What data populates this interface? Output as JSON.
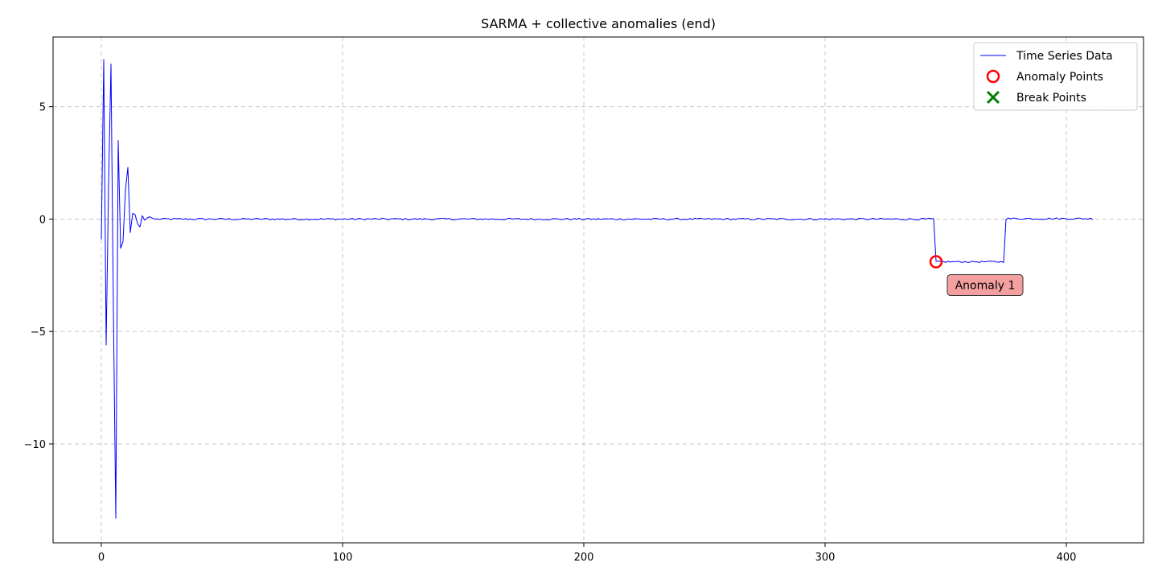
{
  "chart_data": {
    "type": "line",
    "title": "SARMA + collective anomalies (end)",
    "xlabel": "",
    "ylabel": "",
    "xlim": [
      -20,
      432
    ],
    "ylim": [
      -14.4,
      8.1
    ],
    "x_ticks": [
      0,
      100,
      200,
      300,
      400
    ],
    "y_ticks": [
      5,
      0,
      -5,
      -10
    ],
    "x_tick_labels": [
      "0",
      "100",
      "200",
      "300",
      "400"
    ],
    "y_tick_labels": [
      "5",
      "0",
      "−5",
      "−10"
    ],
    "grid": true,
    "legend_position": "top-right",
    "series": [
      {
        "name": "Time Series Data",
        "color": "#0000ff",
        "head": [
          [
            0,
            -0.9
          ],
          [
            1,
            7.1
          ],
          [
            2,
            -5.6
          ],
          [
            3,
            1.5
          ],
          [
            4,
            6.9
          ],
          [
            5,
            -4.0
          ],
          [
            6,
            -13.3
          ],
          [
            7,
            3.5
          ],
          [
            8,
            -1.3
          ],
          [
            9,
            -1.0
          ],
          [
            10,
            1.3
          ],
          [
            11,
            2.3
          ],
          [
            12,
            -0.6
          ],
          [
            13,
            0.25
          ],
          [
            14,
            0.2
          ],
          [
            15,
            -0.2
          ],
          [
            16,
            -0.35
          ],
          [
            17,
            0.15
          ],
          [
            18,
            -0.05
          ],
          [
            19,
            0.05
          ],
          [
            20,
            0.1
          ],
          [
            21,
            0.05
          ],
          [
            22,
            0.0
          ]
        ],
        "segments": [
          {
            "x_start": 23,
            "x_end": 345,
            "level": 0.0,
            "noise": 0.04
          },
          {
            "x_start": 346,
            "x_end": 374,
            "level": -1.9,
            "noise": 0.035
          },
          {
            "x_start": 375,
            "x_end": 411,
            "level": 0.02,
            "noise": 0.04
          }
        ]
      }
    ],
    "anomaly_points": [
      {
        "x": 346,
        "y": -1.9,
        "label": "Anomaly 1",
        "color": "#ff0000"
      }
    ],
    "break_points": [],
    "annotation_box_color": "#f4a0a0",
    "legend": [
      {
        "label": "Time Series Data",
        "marker": "line",
        "color": "#0000ff"
      },
      {
        "label": "Anomaly Points",
        "marker": "circle",
        "color": "#ff0000"
      },
      {
        "label": "Break Points",
        "marker": "x",
        "color": "#008000"
      }
    ]
  }
}
